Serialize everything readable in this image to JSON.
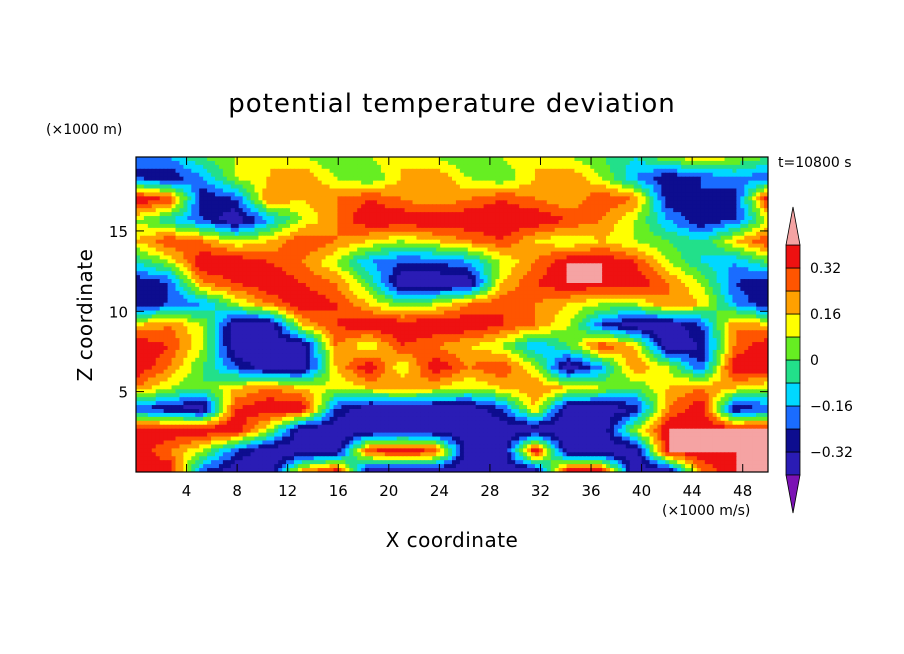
{
  "chart_data": {
    "type": "heatmap",
    "title": "potential temperature deviation",
    "xlabel": "X coordinate",
    "ylabel": "Z coordinate",
    "x_unit": "(×1000 m/s)",
    "y_unit": "(×1000 m)",
    "time_label": "t=10800 s",
    "xlim": [
      0,
      50
    ],
    "ylim": [
      0,
      19.6
    ],
    "x_ticks": [
      4,
      8,
      12,
      16,
      20,
      24,
      28,
      32,
      36,
      40,
      44,
      48
    ],
    "y_ticks": [
      5,
      10,
      15
    ],
    "colorbar": {
      "levels": [
        -0.4,
        -0.32,
        -0.24,
        -0.16,
        -0.08,
        0,
        0.08,
        0.16,
        0.24,
        0.32,
        0.4
      ],
      "tick_labels": [
        "0.32",
        "0.16",
        "0",
        "−0.16",
        "−0.32"
      ],
      "tick_values": [
        0.32,
        0.16,
        0,
        -0.16,
        -0.32
      ],
      "colors_low_to_high": [
        "#7b12b4",
        "#2a1cb5",
        "#0d0d8f",
        "#1a6cff",
        "#00d8ff",
        "#22e08a",
        "#66ee22",
        "#ffff00",
        "#ffa000",
        "#ff5500",
        "#ee1111",
        "#f5a3a3"
      ],
      "extend": "both"
    },
    "field_values": [
      [
        -0.24,
        -0.16,
        0.0,
        0.08,
        0.16,
        0.08,
        0.0,
        0.08,
        0.16,
        0.08,
        0.0,
        0.08,
        0.16,
        0.08,
        0.0,
        -0.08,
        0.08,
        0.16,
        0.08,
        0.0
      ],
      [
        -0.24,
        -0.32,
        -0.16,
        0.08,
        0.16,
        0.24,
        0.08,
        0.0,
        0.16,
        0.24,
        0.08,
        0.0,
        0.16,
        0.24,
        0.08,
        -0.16,
        -0.32,
        -0.24,
        -0.16,
        -0.24
      ],
      [
        0.4,
        0.32,
        -0.32,
        -0.24,
        0.24,
        0.16,
        0.24,
        0.32,
        0.24,
        0.16,
        0.24,
        0.32,
        0.24,
        0.16,
        0.32,
        0.24,
        -0.32,
        -0.24,
        -0.32,
        0.4
      ],
      [
        0.08,
        -0.08,
        -0.24,
        -0.4,
        -0.16,
        0.08,
        0.24,
        0.4,
        0.4,
        0.4,
        0.4,
        0.4,
        0.4,
        0.32,
        0.24,
        0.08,
        -0.16,
        -0.32,
        -0.24,
        0.08
      ],
      [
        0.16,
        0.32,
        0.24,
        0.08,
        0.16,
        0.32,
        0.24,
        0.16,
        0.08,
        0.16,
        0.24,
        0.32,
        0.16,
        0.08,
        0.16,
        0.08,
        0.0,
        -0.08,
        0.16,
        0.32
      ],
      [
        -0.08,
        0.08,
        0.4,
        0.4,
        0.32,
        0.24,
        0.08,
        -0.16,
        -0.24,
        -0.24,
        -0.16,
        0.08,
        0.24,
        0.4,
        0.4,
        0.32,
        0.08,
        -0.08,
        -0.16,
        0.0
      ],
      [
        -0.32,
        -0.24,
        0.24,
        0.32,
        0.4,
        0.32,
        0.24,
        0.0,
        -0.4,
        -0.4,
        -0.4,
        0.16,
        0.32,
        0.4,
        0.4,
        0.4,
        0.24,
        0.08,
        -0.24,
        -0.32
      ],
      [
        -0.32,
        -0.24,
        -0.16,
        0.08,
        0.24,
        0.4,
        0.32,
        0.16,
        0.0,
        0.08,
        0.24,
        0.32,
        0.24,
        0.16,
        0.08,
        0.08,
        0.24,
        0.16,
        -0.16,
        -0.32
      ],
      [
        0.16,
        0.24,
        0.08,
        -0.4,
        -0.4,
        0.16,
        0.32,
        0.4,
        0.4,
        0.4,
        0.4,
        0.32,
        0.24,
        0.08,
        -0.24,
        -0.4,
        -0.4,
        -0.24,
        0.24,
        0.16
      ],
      [
        0.4,
        0.32,
        0.08,
        -0.4,
        -0.4,
        -0.4,
        0.24,
        0.08,
        0.32,
        0.24,
        0.16,
        0.08,
        -0.16,
        0.0,
        0.32,
        0.16,
        -0.4,
        -0.32,
        0.24,
        0.4
      ],
      [
        0.4,
        0.24,
        0.0,
        -0.24,
        -0.4,
        -0.4,
        0.16,
        0.4,
        0.08,
        0.4,
        0.24,
        0.32,
        0.08,
        -0.4,
        -0.16,
        0.24,
        0.08,
        -0.24,
        0.4,
        0.4
      ],
      [
        0.24,
        0.08,
        0.0,
        0.16,
        0.24,
        0.16,
        0.08,
        0.16,
        0.24,
        0.16,
        0.08,
        0.16,
        0.24,
        0.16,
        0.08,
        0.0,
        0.16,
        0.24,
        0.16,
        0.08
      ],
      [
        -0.24,
        -0.32,
        -0.4,
        0.32,
        0.4,
        0.4,
        -0.24,
        -0.4,
        -0.4,
        -0.4,
        -0.4,
        -0.24,
        0.16,
        -0.4,
        -0.4,
        -0.32,
        0.24,
        0.4,
        -0.32,
        -0.24
      ],
      [
        0.4,
        0.4,
        0.4,
        0.4,
        0.08,
        -0.4,
        -0.4,
        -0.4,
        -0.4,
        -0.4,
        -0.4,
        -0.4,
        -0.4,
        -0.4,
        -0.4,
        0.08,
        0.4,
        0.4,
        0.4,
        0.4
      ],
      [
        0.4,
        0.24,
        0.08,
        -0.24,
        -0.4,
        -0.4,
        -0.4,
        0.32,
        0.4,
        0.32,
        -0.4,
        -0.4,
        0.4,
        -0.4,
        -0.4,
        -0.4,
        0.4,
        0.4,
        0.4,
        0.4
      ],
      [
        0.4,
        0.4,
        -0.24,
        -0.4,
        -0.4,
        0.24,
        0.4,
        -0.4,
        -0.4,
        -0.4,
        -0.4,
        -0.4,
        -0.4,
        0.4,
        0.4,
        -0.4,
        -0.4,
        0.24,
        0.4,
        0.4
      ]
    ]
  }
}
